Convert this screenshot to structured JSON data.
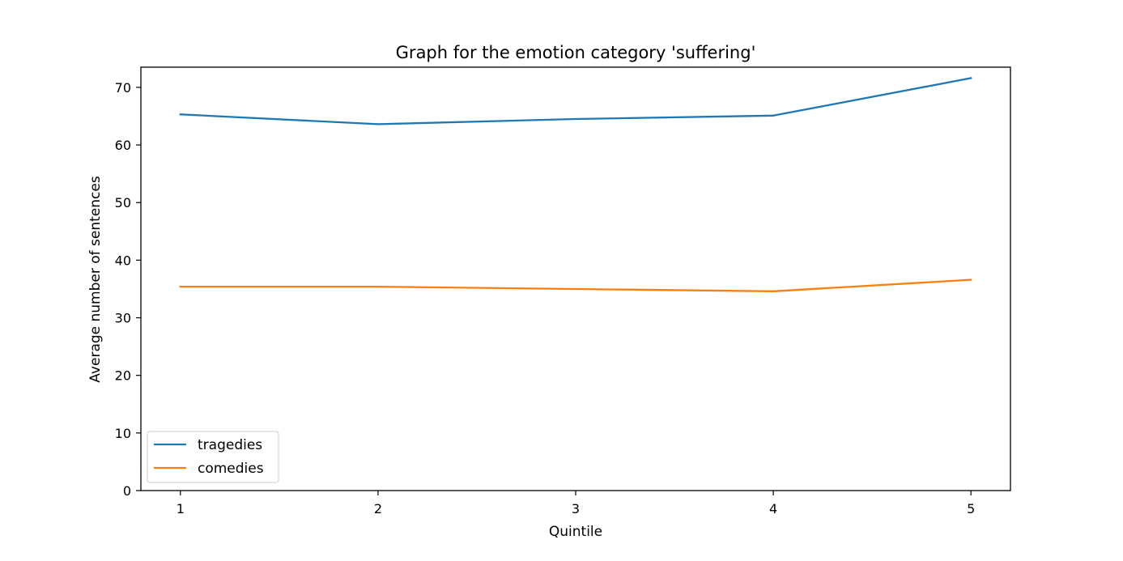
{
  "chart_data": {
    "type": "line",
    "title": "Graph for the emotion category 'suffering'",
    "xlabel": "Quintile",
    "ylabel": "Average number of sentences",
    "x": [
      1,
      2,
      3,
      4,
      5
    ],
    "xlim": [
      0.8,
      5.2
    ],
    "ylim": [
      0,
      73.5
    ],
    "xticks": [
      1,
      2,
      3,
      4,
      5
    ],
    "yticks": [
      0,
      10,
      20,
      30,
      40,
      50,
      60,
      70
    ],
    "grid": false,
    "legend_position": "lower-left",
    "series": [
      {
        "name": "tragedies",
        "color": "#1f77b4",
        "values": [
          65.3,
          63.6,
          64.5,
          65.1,
          71.6
        ]
      },
      {
        "name": "comedies",
        "color": "#ff7f0e",
        "values": [
          35.4,
          35.4,
          35.0,
          34.6,
          36.6
        ]
      }
    ]
  }
}
